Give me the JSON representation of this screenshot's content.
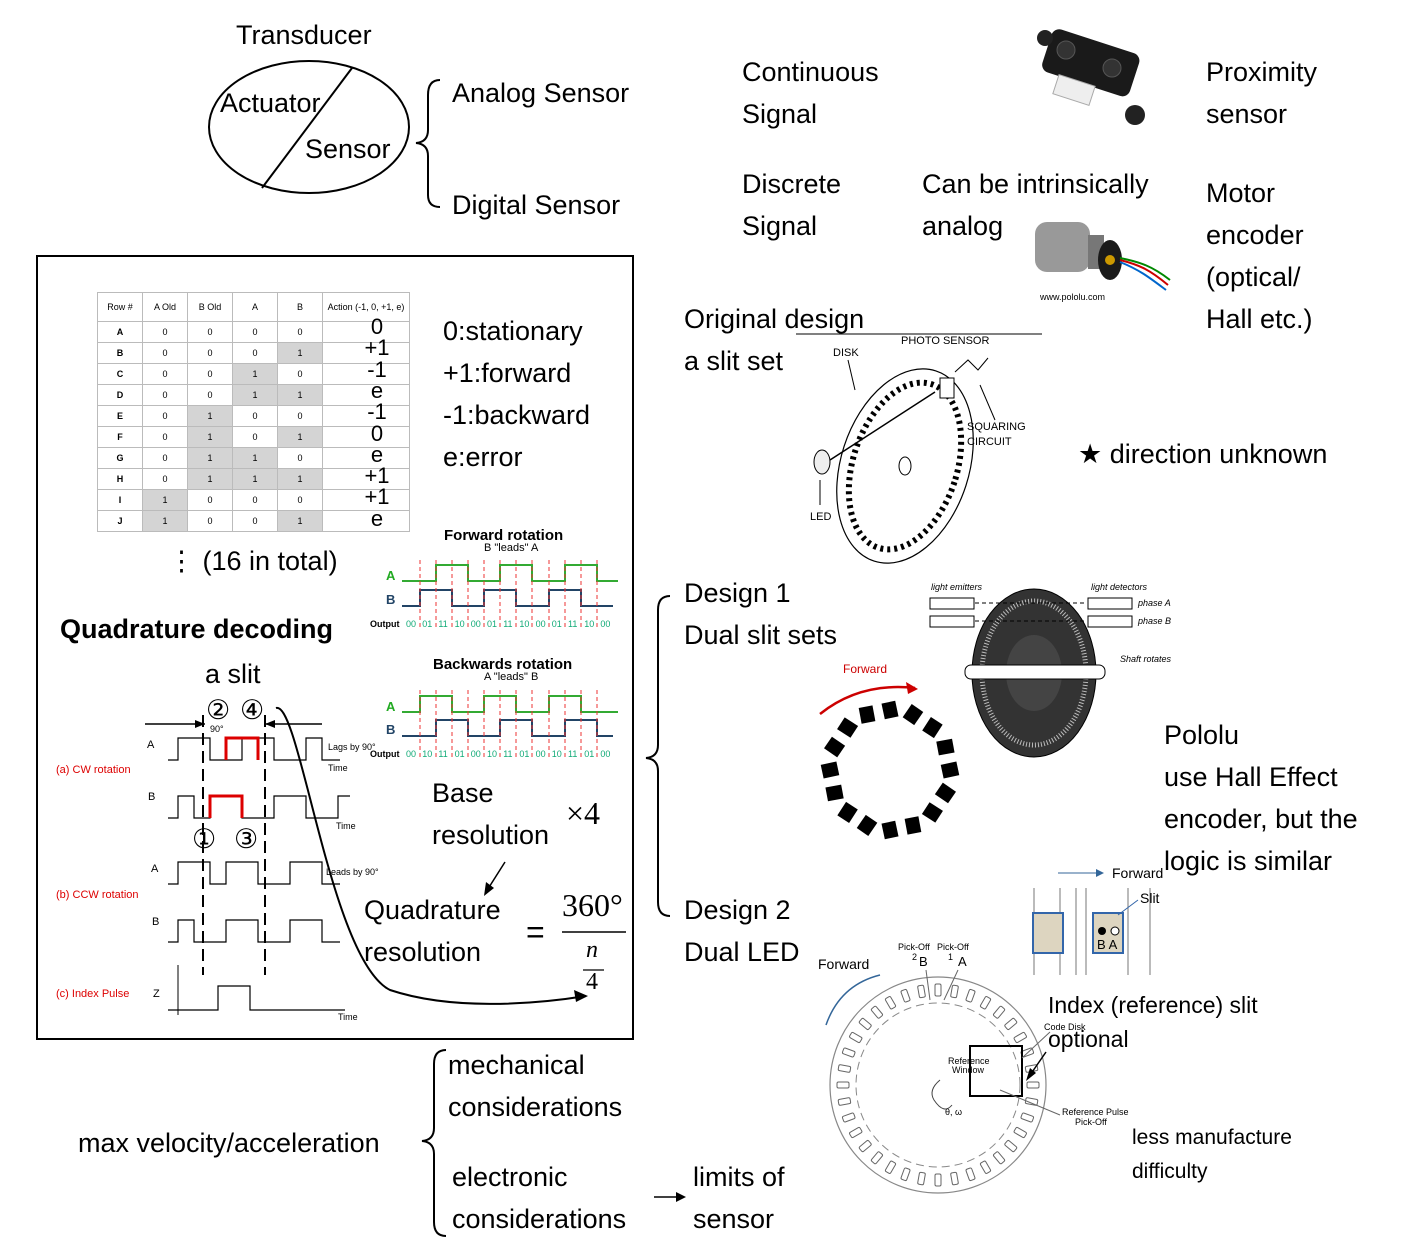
{
  "transducer": {
    "title": "Transducer",
    "actuator": "Actuator",
    "sensor": "Sensor",
    "analog": "Analog Sensor",
    "digital": "Digital Sensor"
  },
  "signals": {
    "continuous": [
      "Continuous",
      "Signal"
    ],
    "discrete": [
      "Discrete",
      "Signal"
    ],
    "intrinsic": [
      "Can be intrinsically",
      "analog"
    ],
    "proximity": [
      "Proximity",
      "sensor"
    ],
    "motor": [
      "Motor",
      "encoder",
      "(optical/",
      "Hall etc.)"
    ]
  },
  "table": {
    "headers": [
      "Row #",
      "A Old",
      "B Old",
      "A",
      "B",
      "Action (-1, 0, +1, e)"
    ],
    "rows": [
      {
        "row": "A",
        "v": [
          "0",
          "0",
          "0",
          "0"
        ],
        "action": "0"
      },
      {
        "row": "B",
        "v": [
          "0",
          "0",
          "0",
          "1"
        ],
        "action": "+1"
      },
      {
        "row": "C",
        "v": [
          "0",
          "0",
          "1",
          "0"
        ],
        "action": "-1"
      },
      {
        "row": "D",
        "v": [
          "0",
          "0",
          "1",
          "1"
        ],
        "action": "e"
      },
      {
        "row": "E",
        "v": [
          "0",
          "1",
          "0",
          "0"
        ],
        "action": "-1"
      },
      {
        "row": "F",
        "v": [
          "0",
          "1",
          "0",
          "1"
        ],
        "action": "0"
      },
      {
        "row": "G",
        "v": [
          "0",
          "1",
          "1",
          "0"
        ],
        "action": "e"
      },
      {
        "row": "H",
        "v": [
          "0",
          "1",
          "1",
          "1"
        ],
        "action": "+1"
      },
      {
        "row": "I",
        "v": [
          "1",
          "0",
          "0",
          "0"
        ],
        "action": "+1"
      },
      {
        "row": "J",
        "v": [
          "1",
          "0",
          "0",
          "1"
        ],
        "action": "e"
      }
    ],
    "total": "⋮ (16 in total)",
    "legend": [
      "0:stationary",
      "+1:forward",
      "-1:backward",
      "e:error"
    ]
  },
  "quad": {
    "title": "Quadrature decoding",
    "slit": "a slit",
    "c2": "②",
    "c4": "④",
    "c1": "①",
    "c3": "③",
    "cw": "(a) CW rotation",
    "ccw": "(b) CCW rotation",
    "index": "(c) Index Pulse",
    "chA": "A",
    "chB": "B",
    "chZ": "Z",
    "lags": "Lags by 90°",
    "leads": "Leads by 90°",
    "time": "Time",
    "deg": "90°",
    "fwd_title": "Forward rotation",
    "fwd_sub": "B \"leads\" A",
    "bwd_title": "Backwards rotation",
    "bwd_sub": "A \"leads\" B",
    "output": "Output",
    "fwd_codes": [
      "00",
      "01",
      "11",
      "10",
      "00",
      "01",
      "11",
      "10",
      "00",
      "01",
      "11",
      "10",
      "00"
    ],
    "bwd_codes": [
      "00",
      "10",
      "11",
      "01",
      "00",
      "10",
      "11",
      "01",
      "00",
      "10",
      "11",
      "01",
      "00"
    ],
    "base": [
      "Base",
      "resolution"
    ],
    "times4": "×4",
    "qres": [
      "Quadrature",
      "resolution"
    ],
    "eq": "=",
    "num": "360°",
    "n": "n",
    "den": "4"
  },
  "designs": {
    "orig": [
      "Original design",
      "a slit set"
    ],
    "photo": "PHOTO SENSOR",
    "disk": "DISK",
    "squaring": [
      "SQUARING",
      "CIRCUIT"
    ],
    "led": "LED",
    "unknown": "★ direction unknown",
    "d1": [
      "Design 1",
      "Dual slit sets"
    ],
    "emit": "light emitters",
    "detect": "light detectors",
    "pa": "phase A",
    "pb": "phase B",
    "shaft": "Shaft rotates",
    "forward": "Forward",
    "pololu": [
      "Pololu",
      "use Hall Effect",
      "encoder, but the",
      "logic is similar"
    ],
    "d2": [
      "Design 2",
      "Dual LED"
    ],
    "fwd2": "Forward",
    "slit": "Slit",
    "ba": "B A",
    "pick": "Pick-Off",
    "pB": "B",
    "pA": "A",
    "n2": "2",
    "n1": "1",
    "index": [
      "Index (reference) slit",
      "optional"
    ],
    "codedisk": "Code Disk",
    "refwin": [
      "Reference",
      "Window"
    ],
    "refpulse": [
      "Reference Pulse",
      "Pick-Off"
    ],
    "theta": "θ, ω",
    "less": [
      "less manufacture",
      "difficulty"
    ]
  },
  "limits": {
    "maxv": "max velocity/acceleration",
    "mech": [
      "mechanical",
      "considerations"
    ],
    "elec": [
      "electronic",
      "considerations"
    ],
    "arrow": "→",
    "lim": [
      "limits of",
      "sensor"
    ]
  }
}
